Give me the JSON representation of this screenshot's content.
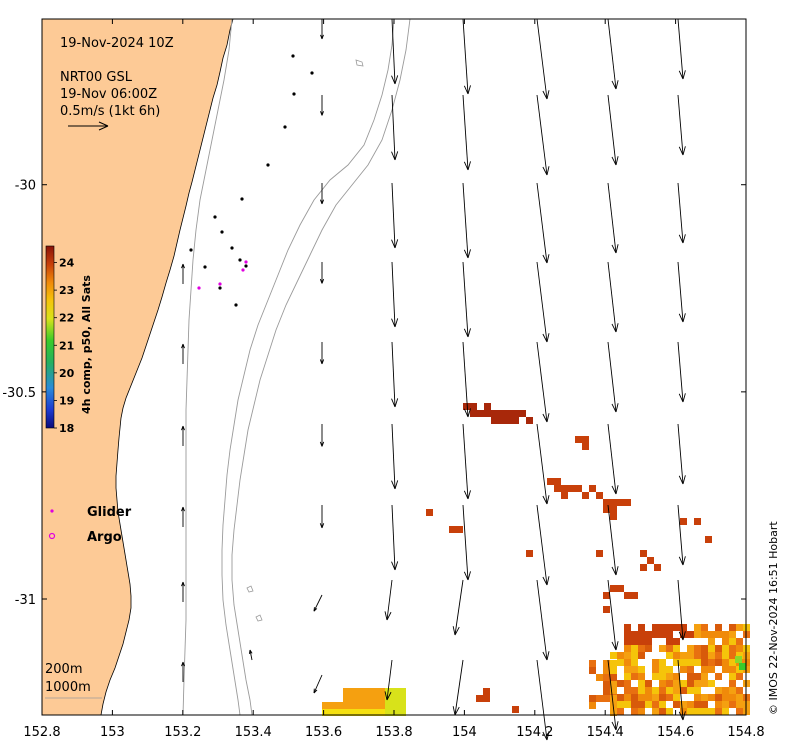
{
  "title": "19-Nov-2024 10Z",
  "product": {
    "name": "NRT00 GSL",
    "time": "19-Nov 06:00Z",
    "scale_label": "0.5m/s (1kt 6h)"
  },
  "colorbar": {
    "label": "4h comp, p50, All Sats",
    "ticks": [
      "18",
      "19",
      "20",
      "21",
      "22",
      "23",
      "24"
    ],
    "range": [
      18,
      24.6
    ],
    "colors": [
      "#0a0a7a",
      "#1e3ad0",
      "#2b8bd8",
      "#25b060",
      "#3acb2a",
      "#d8e21a",
      "#f5c40a",
      "#f08a0a",
      "#c8400a",
      "#8a1208"
    ]
  },
  "legend": {
    "glider_label": "Glider",
    "argo_label": "Argo",
    "glider_color": "#e000e0",
    "argo_color": "#e000e0"
  },
  "contours": {
    "shallow_label": "200m",
    "deep_label": "1000m"
  },
  "credit": "© IMOS 22-Nov-2024 16:51 Hobart",
  "colors": {
    "land": "#fdca96",
    "sea": "#ffffff",
    "contour": "#9a9a9a"
  },
  "map_data": {
    "lon_range": [
      152.8,
      154.8
    ],
    "lat_range": [
      -31.28,
      -29.6
    ],
    "x_ticks": [
      "152.8",
      "153",
      "153.2",
      "153.4",
      "153.6",
      "153.8",
      "154",
      "154.2",
      "154.4",
      "154.6",
      "154.8"
    ],
    "y_ticks": [
      "-30",
      "-30.5",
      "-31"
    ],
    "y_tick_values": [
      -30,
      -30.5,
      -31
    ]
  }
}
